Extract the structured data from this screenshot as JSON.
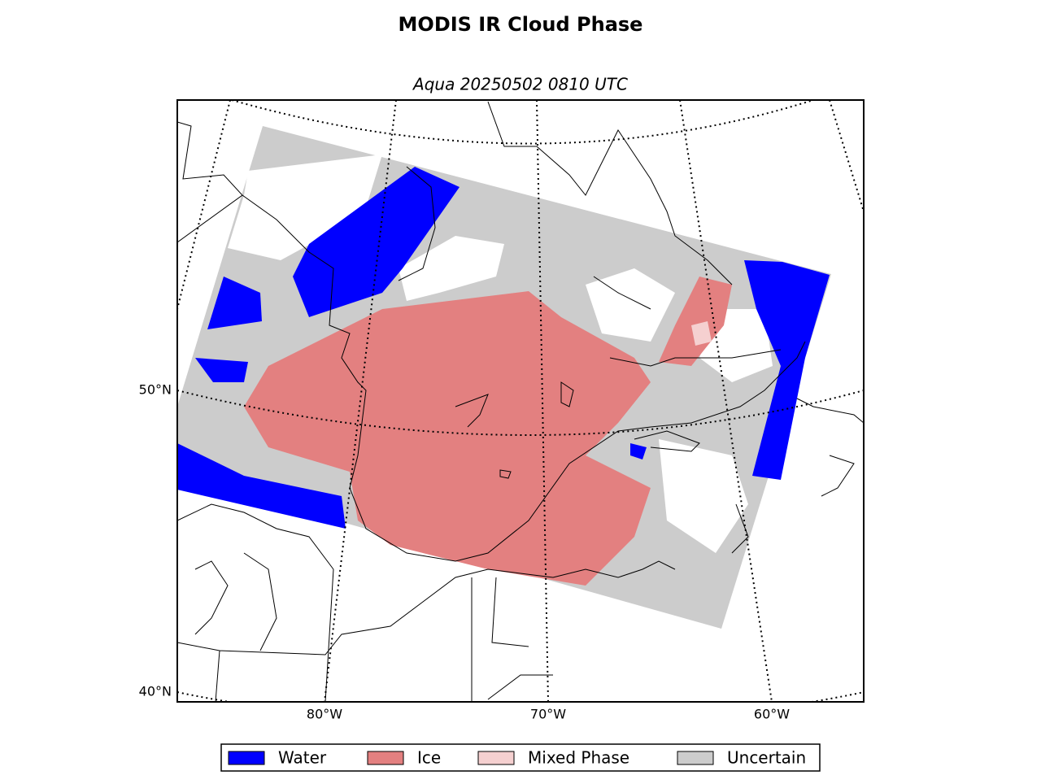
{
  "title": "MODIS IR Cloud Phase",
  "subtitle": "Aqua 20250502 0810 UTC",
  "latitude_labels": [
    "50°N",
    "40°N"
  ],
  "longitude_labels": [
    "80°W",
    "70°W",
    "60°W"
  ],
  "legend": [
    {
      "label": "Water",
      "color": "#0000ff"
    },
    {
      "label": "Ice",
      "color": "#e38080"
    },
    {
      "label": "Mixed Phase",
      "color": "#f5d0d0"
    },
    {
      "label": "Uncertain",
      "color": "#cccccc"
    }
  ]
}
